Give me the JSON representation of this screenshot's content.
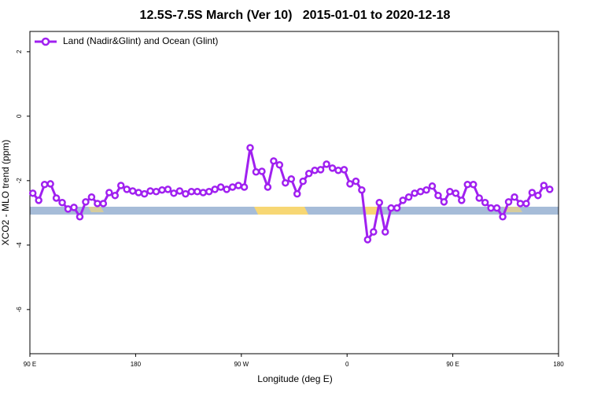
{
  "chart_data": {
    "type": "line",
    "title": "12.5S-7.5S March (Ver 10)   2015-01-01 to 2020-12-18",
    "x_label": "Longitude (deg E)",
    "y_label": "XCO2 - MLO trend (ppm)",
    "xlim": [
      90,
      540
    ],
    "xticks": [
      {
        "value": 90,
        "label": "90 E"
      },
      {
        "value": 180,
        "label": "180"
      },
      {
        "value": 270,
        "label": "90 W"
      },
      {
        "value": 360,
        "label": "0"
      },
      {
        "value": 450,
        "label": "90 E"
      },
      {
        "value": 540,
        "label": "180"
      }
    ],
    "ylim": [
      -7.37,
      2.63
    ],
    "yticks": [
      2,
      0,
      -2,
      -4,
      -6
    ],
    "legend": "top-left",
    "x": [
      92.5,
      97.5,
      102.5,
      107.5,
      112.5,
      117.5,
      122.5,
      127.5,
      132.5,
      137.5,
      142.5,
      147.5,
      152.5,
      157.5,
      162.5,
      167.5,
      172.5,
      177.5,
      182.5,
      187.5,
      192.5,
      197.5,
      202.5,
      207.5,
      212.5,
      217.5,
      222.5,
      227.5,
      232.5,
      237.5,
      242.5,
      247.5,
      252.5,
      257.5,
      262.5,
      267.5,
      272.5,
      277.5,
      282.5,
      287.5,
      292.5,
      297.5,
      302.5,
      307.5,
      312.5,
      317.5,
      322.5,
      327.5,
      332.5,
      337.5,
      342.5,
      347.5,
      352.5,
      357.5,
      362.5,
      367.5,
      372.5,
      377.5,
      382.5,
      387.5,
      392.5,
      397.5,
      402.5,
      407.5,
      412.5,
      417.5,
      422.5,
      427.5,
      432.5,
      437.5,
      442.5,
      447.5,
      452.5,
      457.5,
      462.5,
      467.5,
      472.5,
      477.5,
      482.5,
      487.5,
      492.5,
      497.5,
      502.5,
      507.5,
      512.5,
      517.5,
      522.5,
      527.5,
      532.5
    ],
    "series": [
      {
        "name": "Land (Nadir&Glint) and Ocean (Glint)",
        "color": "#a020f0",
        "values": [
          -2.39,
          -2.61,
          -2.12,
          -2.1,
          -2.54,
          -2.68,
          -2.88,
          -2.83,
          -3.12,
          -2.66,
          -2.51,
          -2.71,
          -2.71,
          -2.37,
          -2.46,
          -2.15,
          -2.27,
          -2.32,
          -2.37,
          -2.41,
          -2.32,
          -2.34,
          -2.29,
          -2.27,
          -2.39,
          -2.32,
          -2.41,
          -2.34,
          -2.34,
          -2.37,
          -2.34,
          -2.27,
          -2.2,
          -2.27,
          -2.2,
          -2.15,
          -2.2,
          -0.98,
          -1.73,
          -1.71,
          -2.2,
          -1.39,
          -1.51,
          -2.07,
          -1.95,
          -2.41,
          -2.02,
          -1.78,
          -1.68,
          -1.66,
          -1.49,
          -1.61,
          -1.68,
          -1.66,
          -2.1,
          -2.02,
          -2.29,
          -3.83,
          -3.59,
          -2.68,
          -3.59,
          -2.85,
          -2.85,
          -2.61,
          -2.51,
          -2.39,
          -2.34,
          -2.29,
          -2.17,
          -2.46,
          -2.66,
          -2.34,
          -2.39,
          -2.61,
          -2.12,
          -2.12,
          -2.54,
          -2.68,
          -2.85,
          -2.85,
          -3.12,
          -2.66,
          -2.51,
          -2.71,
          -2.71,
          -2.37,
          -2.46,
          -2.15,
          -2.27
        ]
      }
    ]
  }
}
